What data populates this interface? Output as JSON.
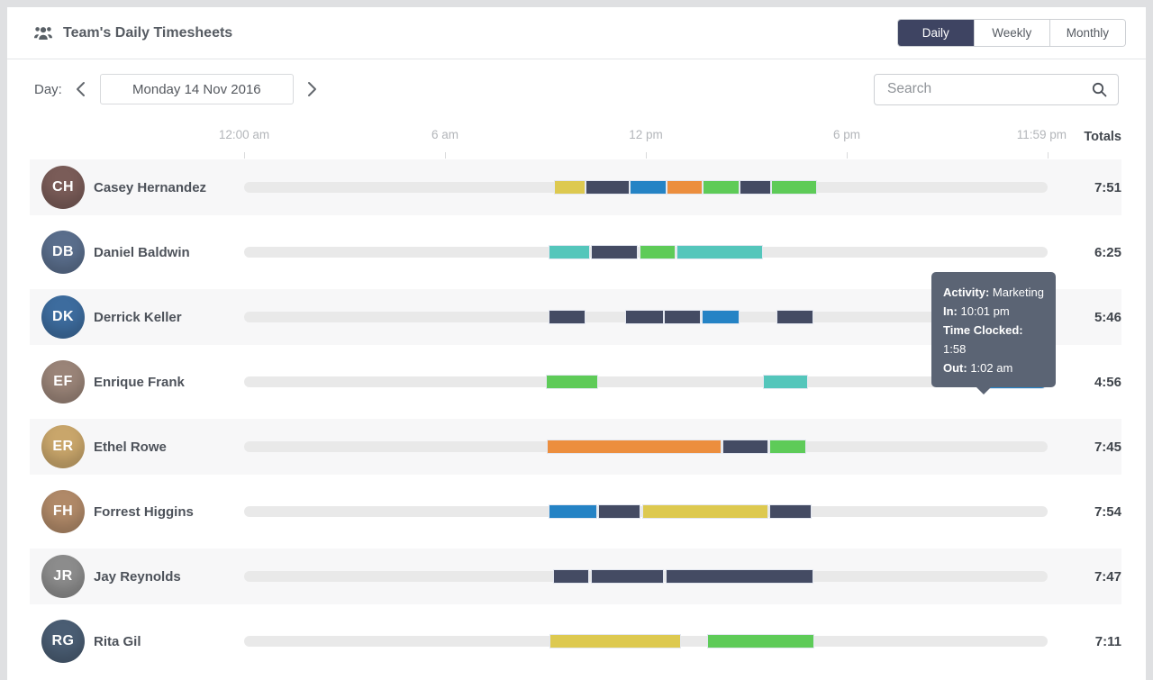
{
  "header": {
    "title": "Team's Daily Timesheets",
    "tabs": [
      {
        "label": "Daily",
        "active": true
      },
      {
        "label": "Weekly",
        "active": false
      },
      {
        "label": "Monthly",
        "active": false
      }
    ]
  },
  "toolbar": {
    "day_label": "Day:",
    "date_value": "Monday 14 Nov 2016",
    "search_placeholder": "Search"
  },
  "timeline": {
    "totals_label": "Totals",
    "ticks": [
      {
        "label": "12:00 am",
        "pct": 0
      },
      {
        "label": "6 am",
        "pct": 25
      },
      {
        "label": "12 pm",
        "pct": 50
      },
      {
        "label": "6 pm",
        "pct": 75
      },
      {
        "label": "11:59 pm",
        "pct": 100
      }
    ]
  },
  "colors": {
    "yellow": "#ddc950",
    "navy": "#444b63",
    "blue": "#2583c5",
    "orange": "#ec8e3e",
    "green": "#5ecb58",
    "teal": "#54c6bb",
    "track": "#e9e9e9",
    "tab_active_bg": "#3e4462",
    "tooltip_bg": "#5b6474"
  },
  "tooltip": {
    "lines": [
      {
        "label": "Activity:",
        "value": " Marketing"
      },
      {
        "label": "In:",
        "value": " 10:01 pm"
      },
      {
        "label": "Time Clocked:",
        "value": " 1:58"
      },
      {
        "label": "Out:",
        "value": " 1:02 am"
      }
    ]
  },
  "rows": [
    {
      "name": "Casey Hernandez",
      "initials": "CH",
      "avatar_color": "#7a5c58",
      "total": "7:51",
      "segments": [
        {
          "color": "yellow",
          "left_pct": 38.53,
          "width_pct": 3.99
        },
        {
          "color": "navy",
          "left_pct": 42.52,
          "width_pct": 5.49
        },
        {
          "color": "blue",
          "left_pct": 48.02,
          "width_pct": 4.6
        },
        {
          "color": "orange",
          "left_pct": 52.61,
          "width_pct": 4.48
        },
        {
          "color": "green",
          "left_pct": 57.1,
          "width_pct": 4.6
        },
        {
          "color": "navy",
          "left_pct": 61.69,
          "width_pct": 3.92
        },
        {
          "color": "green",
          "left_pct": 65.62,
          "width_pct": 5.68
        }
      ]
    },
    {
      "name": "Daniel Baldwin",
      "initials": "DB",
      "avatar_color": "#5a6e8c",
      "total": "6:25",
      "segments": [
        {
          "color": "teal",
          "left_pct": 37.89,
          "width_pct": 5.12
        },
        {
          "color": "navy",
          "left_pct": 43.13,
          "width_pct": 5.86
        },
        {
          "color": "green",
          "left_pct": 49.18,
          "width_pct": 4.48
        },
        {
          "color": "teal",
          "left_pct": 53.78,
          "width_pct": 10.83
        }
      ]
    },
    {
      "name": "Derrick Keller",
      "initials": "DK",
      "avatar_color": "#3d6c9e",
      "total": "5:46",
      "segments": [
        {
          "color": "navy",
          "left_pct": 37.89,
          "width_pct": 4.63
        },
        {
          "color": "navy",
          "left_pct": 47.39,
          "width_pct": 4.85
        },
        {
          "color": "navy",
          "left_pct": 52.24,
          "width_pct": 4.6
        },
        {
          "color": "blue",
          "left_pct": 56.92,
          "width_pct": 4.78
        },
        {
          "color": "navy",
          "left_pct": 66.26,
          "width_pct": 4.6
        }
      ]
    },
    {
      "name": "Enrique Frank",
      "initials": "EF",
      "avatar_color": "#9a8478",
      "total": "4:56",
      "segments": [
        {
          "color": "green",
          "left_pct": 37.6,
          "width_pct": 6.43
        },
        {
          "color": "teal",
          "left_pct": 64.63,
          "width_pct": 5.57
        },
        {
          "color": "blue",
          "left_pct": 91.96,
          "width_pct": 8.04
        }
      ]
    },
    {
      "name": "Ethel Rowe",
      "initials": "ER",
      "avatar_color": "#c9a66b",
      "total": "7:45",
      "segments": [
        {
          "color": "orange",
          "left_pct": 37.67,
          "width_pct": 21.71
        },
        {
          "color": "navy",
          "left_pct": 59.56,
          "width_pct": 5.68
        },
        {
          "color": "green",
          "left_pct": 65.36,
          "width_pct": 4.56
        }
      ]
    },
    {
      "name": "Forrest Higgins",
      "initials": "FH",
      "avatar_color": "#b08968",
      "total": "7:54",
      "segments": [
        {
          "color": "blue",
          "left_pct": 37.89,
          "width_pct": 6.05
        },
        {
          "color": "navy",
          "left_pct": 44.06,
          "width_pct": 5.3
        },
        {
          "color": "yellow",
          "left_pct": 49.55,
          "width_pct": 15.7
        },
        {
          "color": "navy",
          "left_pct": 65.36,
          "width_pct": 5.3
        }
      ]
    },
    {
      "name": "Jay Reynolds",
      "initials": "JR",
      "avatar_color": "#8c8c8c",
      "total": "7:47",
      "segments": [
        {
          "color": "navy",
          "left_pct": 38.45,
          "width_pct": 4.48
        },
        {
          "color": "navy",
          "left_pct": 43.13,
          "width_pct": 9.15
        },
        {
          "color": "navy",
          "left_pct": 52.47,
          "width_pct": 18.39
        }
      ]
    },
    {
      "name": "Rita Gil",
      "initials": "RG",
      "avatar_color": "#4a5d73",
      "total": "7:11",
      "segments": [
        {
          "color": "yellow",
          "left_pct": 37.97,
          "width_pct": 16.37
        },
        {
          "color": "green",
          "left_pct": 57.59,
          "width_pct": 13.37
        }
      ]
    }
  ]
}
